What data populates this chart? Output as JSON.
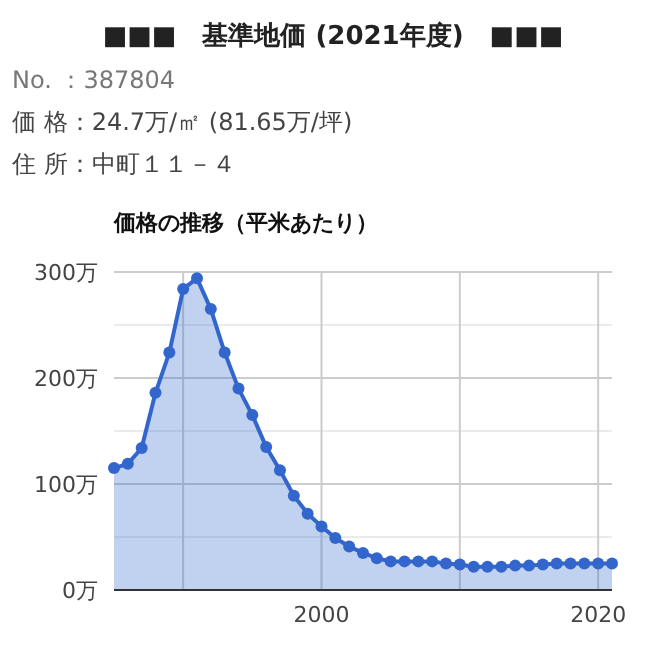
{
  "chart_data": {
    "type": "area",
    "title": "■■■　基準地価 (2021年度)　■■■",
    "subtitle": "価格の推移（平米あたり）",
    "annotations": [
      "No. ：387804",
      "価 格：24.7万/㎡ (81.65万/坪)",
      "住 所：中町１１－４"
    ],
    "x": [
      1985,
      1986,
      1987,
      1988,
      1989,
      1990,
      1991,
      1992,
      1993,
      1994,
      1995,
      1996,
      1997,
      1998,
      1999,
      2000,
      2001,
      2002,
      2003,
      2004,
      2005,
      2006,
      2007,
      2008,
      2009,
      2010,
      2011,
      2012,
      2013,
      2014,
      2015,
      2016,
      2017,
      2018,
      2019,
      2020,
      2021
    ],
    "series": [
      {
        "color": "#3366cc",
        "values": [
          115,
          119,
          134,
          186,
          224,
          284,
          294,
          265,
          224,
          190,
          165,
          135,
          113,
          89,
          72,
          60,
          49,
          41,
          35,
          30,
          27,
          27,
          27,
          27,
          25,
          24,
          22,
          22,
          22,
          23,
          23,
          24,
          25,
          25,
          25,
          25,
          25
        ]
      }
    ],
    "xlim": [
      1985,
      2021
    ],
    "xticks": [
      {
        "value": 1990,
        "label": null
      },
      2000,
      {
        "value": 2010,
        "label": null
      },
      2020
    ],
    "ylim": [
      0,
      300
    ],
    "yticks": [
      {
        "value": 0,
        "label": "0万"
      },
      {
        "value": 50,
        "label": null
      },
      {
        "value": 100,
        "label": "100万"
      },
      {
        "value": 150,
        "label": null
      },
      {
        "value": 200,
        "label": "200万"
      },
      {
        "value": 250,
        "label": null
      },
      {
        "value": 300,
        "label": "300万"
      }
    ],
    "grid": true,
    "marker": "circle"
  }
}
